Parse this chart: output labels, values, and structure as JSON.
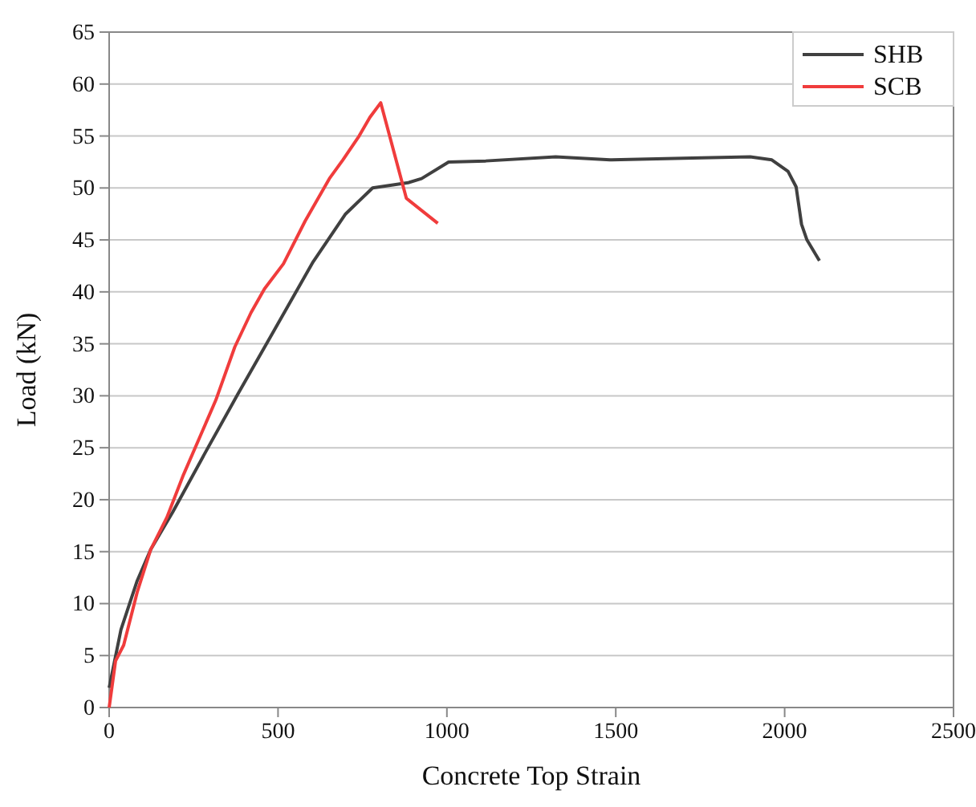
{
  "chart_data": {
    "type": "line",
    "xlabel": "Concrete Top Strain",
    "ylabel": "Load (kN)",
    "xlim": [
      0,
      2500
    ],
    "xticks": [
      0,
      500,
      1000,
      1500,
      2000,
      2500
    ],
    "ylim": [
      0,
      65
    ],
    "yticks": [
      0,
      5,
      10,
      15,
      20,
      25,
      30,
      35,
      40,
      45,
      50,
      55,
      60,
      65
    ],
    "grid": "y",
    "legend": "top right",
    "marker": "none",
    "line_style": "solid",
    "series": [
      {
        "name": "SHB",
        "color": "#404040",
        "x": [
          0,
          35,
          83,
          123,
          188,
          284,
          380,
          492,
          604,
          700,
          780,
          885,
          925,
          1005,
          1115,
          1322,
          1483,
          1754,
          1898,
          1962,
          2010,
          2034,
          2050,
          2066,
          2103
        ],
        "values": [
          1.9,
          7.5,
          12.2,
          15.2,
          18.8,
          24.5,
          30.1,
          36.5,
          42.9,
          47.5,
          50,
          50.5,
          50.9,
          52.5,
          52.6,
          53,
          52.7,
          52.9,
          53,
          52.7,
          51.6,
          50.1,
          46.5,
          45,
          43
        ]
      },
      {
        "name": "SCB",
        "color": "#f03c3c",
        "x": [
          0,
          19,
          43,
          83,
          123,
          171,
          220,
          268,
          316,
          372,
          420,
          460,
          516,
          580,
          652,
          692,
          740,
          772,
          804,
          880,
          973
        ],
        "values": [
          0,
          4.5,
          6,
          11.1,
          15.2,
          18.3,
          22.4,
          26,
          29.6,
          34.7,
          38,
          40.3,
          42.7,
          46.8,
          50.9,
          52.7,
          55,
          56.8,
          58.2,
          49,
          46.6
        ]
      }
    ]
  }
}
